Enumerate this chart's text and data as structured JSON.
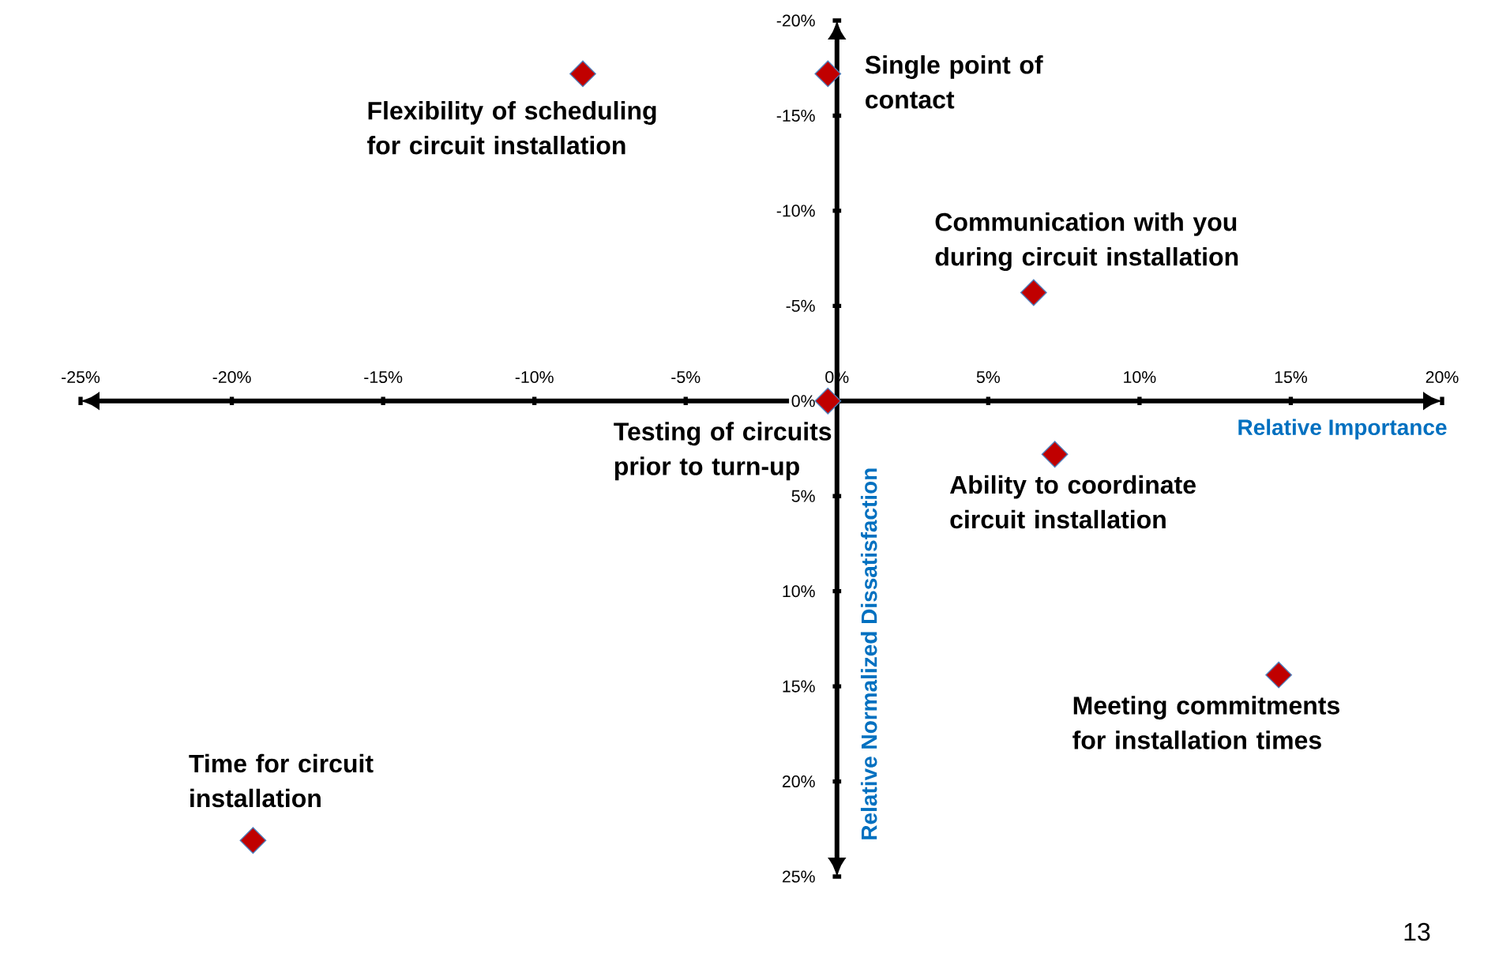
{
  "chart_data": {
    "type": "scatter",
    "xlabel": "Relative Importance",
    "ylabel": "Relative Normalized Dissatisfaction",
    "x": [
      -8.4,
      -0.3,
      6.5,
      -0.3,
      7.2,
      14.6,
      -19.3
    ],
    "values": [
      -17.2,
      -17.2,
      -5.7,
      0,
      2.8,
      14.4,
      23.1
    ],
    "color": "#c00000",
    "marker": "diamond",
    "xlim": [
      -25,
      20
    ],
    "ylim": [
      25,
      -20
    ],
    "xticks": [
      {
        "value": -25,
        "label": "-25%"
      },
      {
        "value": -20,
        "label": "-20%"
      },
      {
        "value": -15,
        "label": "-15%"
      },
      {
        "value": -10,
        "label": "-10%"
      },
      {
        "value": -5,
        "label": "-5%"
      },
      {
        "value": 0,
        "label": "0%"
      },
      {
        "value": 5,
        "label": "5%"
      },
      {
        "value": 10,
        "label": "10%"
      },
      {
        "value": 15,
        "label": "15%"
      },
      {
        "value": 20,
        "label": "20%"
      }
    ],
    "yticks": [
      {
        "value": -20,
        "label": "-20%"
      },
      {
        "value": -15,
        "label": "-15%"
      },
      {
        "value": -10,
        "label": "-10%"
      },
      {
        "value": -5,
        "label": "-5%"
      },
      {
        "value": 0,
        "label": "0%"
      },
      {
        "value": 5,
        "label": "5%"
      },
      {
        "value": 10,
        "label": "10%"
      },
      {
        "value": 15,
        "label": "15%"
      },
      {
        "value": 20,
        "label": "20%"
      },
      {
        "value": 25,
        "label": "25%"
      }
    ],
    "annotations": [
      {
        "text": "Flexibility of scheduling for circuit installation",
        "x": -8.4,
        "y": -17.2
      },
      {
        "text": "Single point of contact",
        "x": -0.3,
        "y": -17.2
      },
      {
        "text": "Communication with you during circuit installation",
        "x": 6.5,
        "y": -5.7
      },
      {
        "text": "Testing of circuits prior to turn-up",
        "x": -0.3,
        "y": 0
      },
      {
        "text": "Ability to coordinate circuit installation",
        "x": 7.2,
        "y": 2.8
      },
      {
        "text": "Meeting commitments for installation times",
        "x": 14.6,
        "y": 14.4
      },
      {
        "text": "Time for circuit installation",
        "x": -19.3,
        "y": 23.1
      },
      "13"
    ]
  }
}
